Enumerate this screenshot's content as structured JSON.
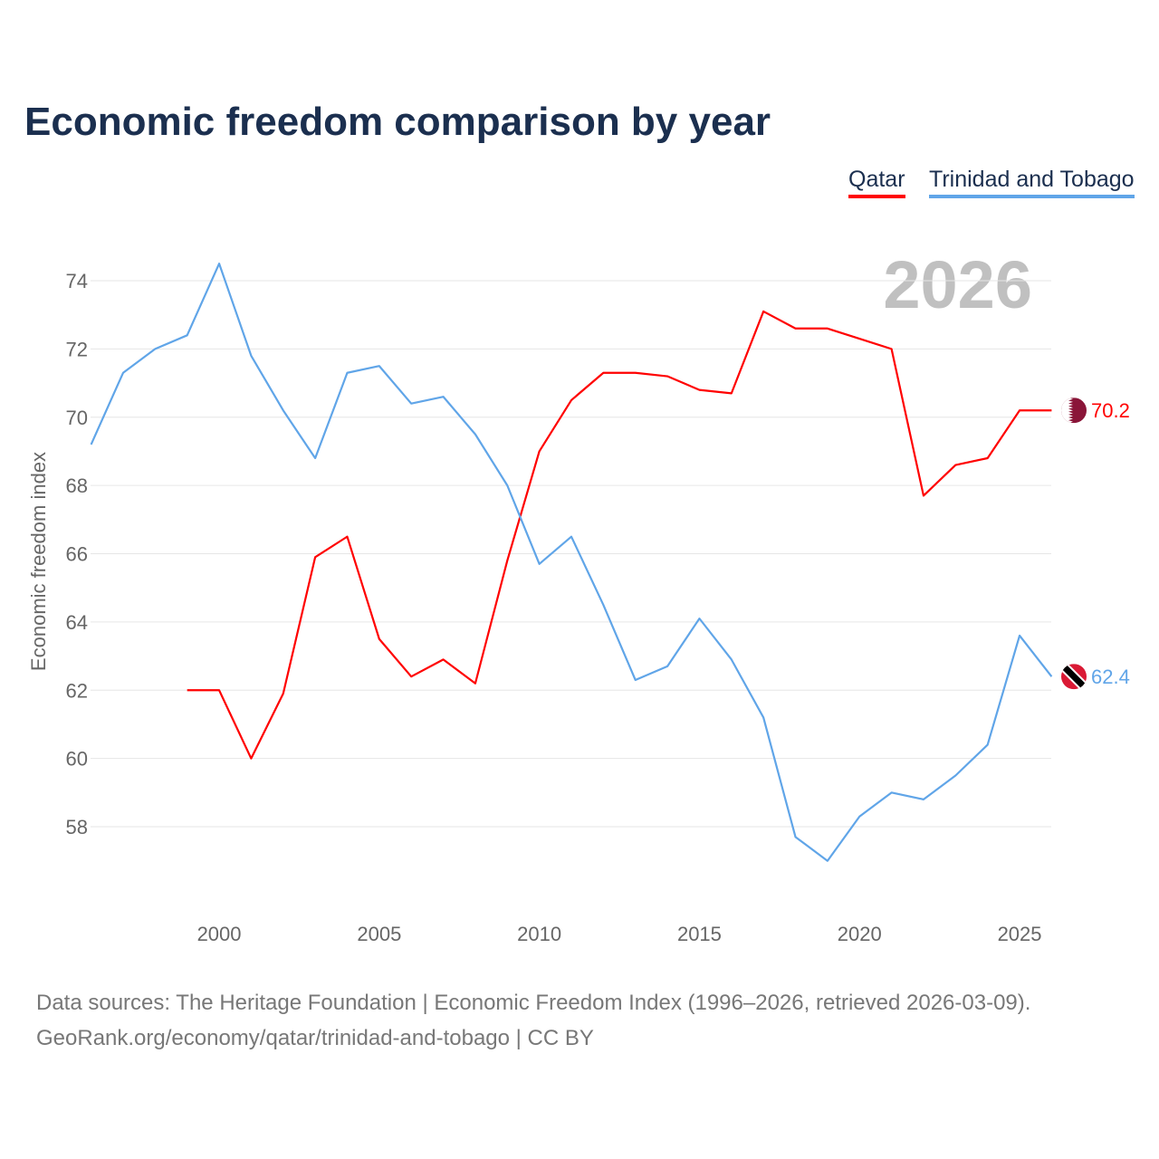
{
  "title": "Economic freedom comparison by year",
  "legend": [
    {
      "label": "Qatar",
      "color": "#ff0000"
    },
    {
      "label": "Trinidad and Tobago",
      "color": "#60a5e8"
    }
  ],
  "year_watermark": "2026",
  "source_line1": "Data sources: The Heritage Foundation | Economic Freedom Index (1996–2026, retrieved 2026-03-09).",
  "source_line2": "GeoRank.org/economy/qatar/trinidad-and-tobago | CC BY",
  "chart_data": {
    "type": "line",
    "title": "Economic freedom comparison by year",
    "xlabel": "",
    "ylabel": "Economic freedom index",
    "xlim": [
      1996,
      2026
    ],
    "ylim": [
      56,
      75
    ],
    "xticks": [
      2000,
      2005,
      2010,
      2015,
      2020,
      2025
    ],
    "yticks": [
      58,
      60,
      62,
      64,
      66,
      68,
      70,
      72,
      74
    ],
    "grid": true,
    "legend_position": "top-right",
    "series": [
      {
        "name": "Qatar",
        "color": "#ff0000",
        "end_label": "70.2",
        "flag": "qatar-flag",
        "x": [
          1999,
          2000,
          2001,
          2002,
          2003,
          2004,
          2005,
          2006,
          2007,
          2008,
          2009,
          2010,
          2011,
          2012,
          2013,
          2014,
          2015,
          2016,
          2017,
          2018,
          2019,
          2020,
          2021,
          2022,
          2023,
          2024,
          2025,
          2026
        ],
        "values": [
          62.0,
          62.0,
          60.0,
          61.9,
          65.9,
          66.5,
          63.5,
          62.4,
          62.9,
          62.2,
          65.8,
          69.0,
          70.5,
          71.3,
          71.3,
          71.2,
          70.8,
          70.7,
          73.1,
          72.6,
          72.6,
          72.3,
          72.0,
          67.7,
          68.6,
          68.8,
          70.2,
          70.2
        ]
      },
      {
        "name": "Trinidad and Tobago",
        "color": "#60a5e8",
        "end_label": "62.4",
        "flag": "trinidad-flag",
        "x": [
          1996,
          1997,
          1998,
          1999,
          2000,
          2001,
          2002,
          2003,
          2004,
          2005,
          2006,
          2007,
          2008,
          2009,
          2010,
          2011,
          2012,
          2013,
          2014,
          2015,
          2016,
          2017,
          2018,
          2019,
          2020,
          2021,
          2022,
          2023,
          2024,
          2025,
          2026
        ],
        "values": [
          69.2,
          71.3,
          72.0,
          72.4,
          74.5,
          71.8,
          70.2,
          68.8,
          71.3,
          71.5,
          70.4,
          70.6,
          69.5,
          68.0,
          65.7,
          66.5,
          64.5,
          62.3,
          62.7,
          64.1,
          62.9,
          61.2,
          57.7,
          57.0,
          58.3,
          59.0,
          58.8,
          59.5,
          60.4,
          63.6,
          62.4
        ]
      }
    ]
  }
}
